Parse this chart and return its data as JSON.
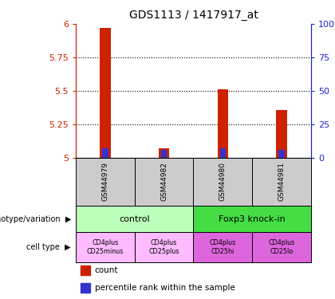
{
  "title": "GDS1113 / 1417917_at",
  "samples": [
    "GSM44979",
    "GSM44982",
    "GSM44980",
    "GSM44981"
  ],
  "count_values": [
    5.97,
    5.07,
    5.51,
    5.36
  ],
  "percentile_values": [
    0.07,
    0.06,
    0.07,
    0.06
  ],
  "base_value": 5.0,
  "ylim": [
    5.0,
    6.0
  ],
  "yticks": [
    5.0,
    5.25,
    5.5,
    5.75,
    6.0
  ],
  "ytick_labels": [
    "5",
    "5.25",
    "5.5",
    "5.75",
    "6"
  ],
  "right_ytick_labels": [
    "0",
    "25",
    "50",
    "75",
    "100%"
  ],
  "bar_color": "#cc2200",
  "percentile_color": "#3333cc",
  "bar_width": 0.18,
  "pct_bar_width": 0.1,
  "genotype_groups": [
    {
      "label": "control",
      "span": [
        0,
        2
      ],
      "color": "#bbffbb"
    },
    {
      "label": "Foxp3 knock-in",
      "span": [
        2,
        4
      ],
      "color": "#44dd44"
    }
  ],
  "cell_colors": [
    "#ffbbff",
    "#ffbbff",
    "#dd66dd",
    "#dd66dd"
  ],
  "cell_types": [
    [
      "CD4plus",
      "CD25minus"
    ],
    [
      "CD4plus",
      "CD25plus"
    ],
    [
      "CD4plus",
      "CD25hi"
    ],
    [
      "CD4plus",
      "CD25lo"
    ]
  ],
  "legend_count_color": "#cc2200",
  "legend_pct_color": "#3333cc",
  "left_axis_color": "#cc2200",
  "right_axis_color": "#2222cc",
  "grid_ticks": [
    5.25,
    5.5,
    5.75
  ],
  "sample_box_color": "#cccccc"
}
